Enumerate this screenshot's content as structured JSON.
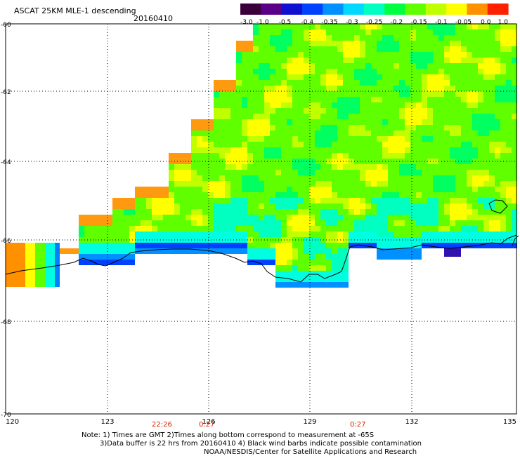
{
  "header": {
    "title": "ASCAT 25KM MLE-1 descending",
    "date": "20160410"
  },
  "colorbar": {
    "labels": [
      "-3.0",
      "-1.0",
      "-0.5",
      "-0.4",
      "-0.35",
      "-0.3",
      "-0.25",
      "-0.2",
      "-0.15",
      "-0.1",
      "-0.05",
      "0.0",
      "1.0"
    ]
  },
  "axes": {
    "lon_labels": [
      "120",
      "123",
      "126",
      "129",
      "132",
      "135"
    ],
    "lat_labels": [
      "-60",
      "-62",
      "-64",
      "-66",
      "-68",
      "-70"
    ]
  },
  "times": {
    "labels": [
      "22:26",
      "0:27",
      "0:27"
    ]
  },
  "notes": {
    "line1": "Note: 1) Times are GMT 2)Times along bottom correspond to measurement at -65S",
    "line2": "3)Data buffer is 22 hrs from 20160410 4) Black wind barbs indicate possible contamination",
    "line3": "NOAA/NESDIS/Center for Satellite Applications and Research"
  }
}
